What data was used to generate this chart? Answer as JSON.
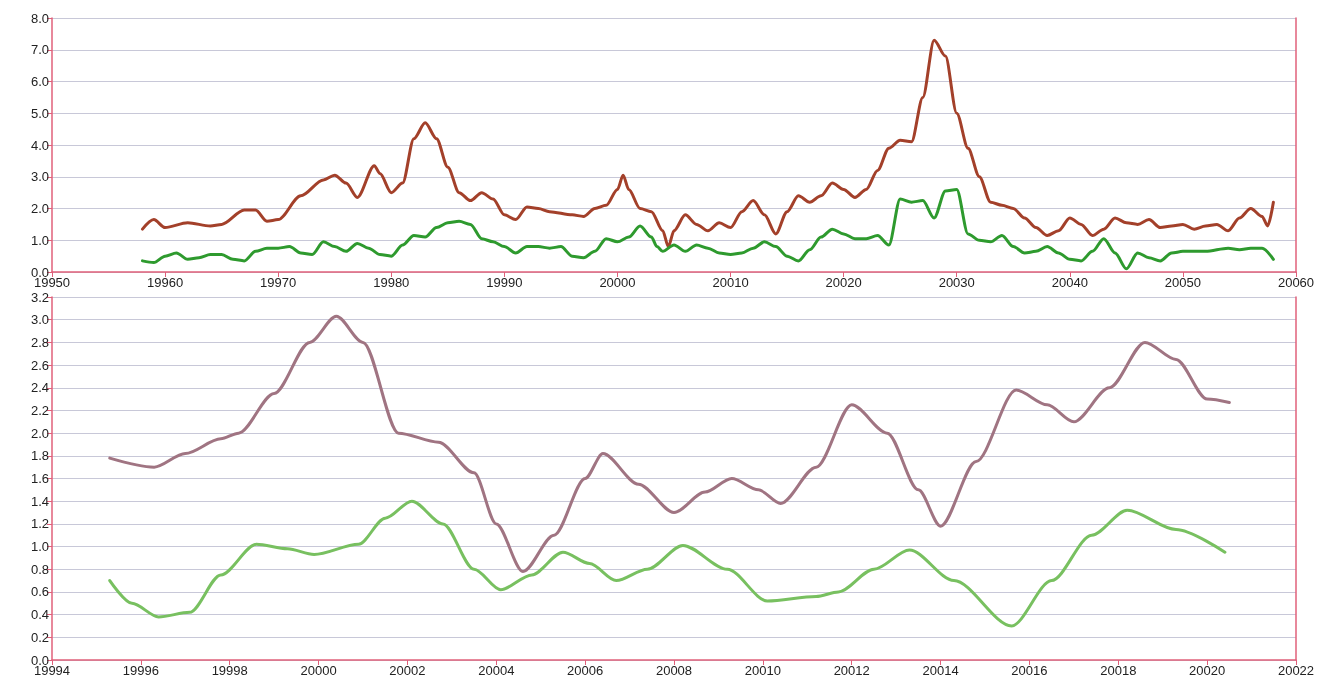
{
  "chart_data": [
    {
      "type": "line",
      "xlim": [
        19950,
        20060
      ],
      "xticks": [
        19950,
        19960,
        19970,
        19980,
        19990,
        20000,
        20010,
        20020,
        20030,
        20040,
        20050,
        20060
      ],
      "ylim": [
        0,
        8
      ],
      "yticks": [
        {
          "value": 0,
          "label": "0.0"
        },
        {
          "value": 1,
          "label": "1.0"
        },
        {
          "value": 2,
          "label": "2.0"
        },
        {
          "value": 3,
          "label": "3.0"
        },
        {
          "value": 4,
          "label": "4.0"
        },
        {
          "value": 5,
          "label": "5.0"
        },
        {
          "value": 6,
          "label": "6.0"
        },
        {
          "value": 7,
          "label": "7.0"
        },
        {
          "value": 8,
          "label": "8.0"
        }
      ],
      "grid": "y",
      "line_style": "solid",
      "series": [
        {
          "color": "#a3402a",
          "x": [
            19958,
            19959,
            19960,
            19962,
            19964,
            19965,
            19967,
            19968,
            19969,
            19970,
            19972,
            19974,
            19975,
            19976,
            19977,
            19978.5,
            19979,
            19980,
            19981,
            19982,
            19983,
            19984,
            19985,
            19986,
            19987,
            19988,
            19989,
            19990,
            19991,
            19992,
            19993,
            19994,
            19996,
            19997,
            19998,
            19999,
            20000,
            20000.5,
            20001,
            20002,
            20003,
            20004,
            20004.5,
            20005,
            20006,
            20007,
            20008,
            20009,
            20010,
            20011,
            20012,
            20013,
            20014,
            20015,
            20016,
            20017,
            20018,
            20019,
            20020,
            20021,
            20022,
            20023,
            20024,
            20025,
            20026,
            20027,
            20028,
            20029,
            20030,
            20031,
            20032,
            20033,
            20034,
            20035,
            20036,
            20037,
            20038,
            20039,
            20040,
            20041,
            20042,
            20043,
            20044,
            20045,
            20046,
            20047,
            20048,
            20049,
            20050,
            20051,
            20052,
            20053,
            20054,
            20055,
            20056,
            20057,
            20057.5,
            20058
          ],
          "values": [
            1.35,
            1.65,
            1.4,
            1.55,
            1.45,
            1.5,
            1.95,
            1.95,
            1.6,
            1.65,
            2.4,
            2.9,
            3.05,
            2.8,
            2.35,
            3.35,
            3.1,
            2.5,
            2.8,
            4.2,
            4.7,
            4.2,
            3.3,
            2.5,
            2.25,
            2.5,
            2.3,
            1.8,
            1.65,
            2.05,
            2.0,
            1.9,
            1.8,
            1.75,
            2.0,
            2.1,
            2.6,
            3.05,
            2.6,
            2.0,
            1.9,
            1.3,
            0.8,
            1.3,
            1.8,
            1.5,
            1.3,
            1.55,
            1.4,
            1.9,
            2.25,
            1.8,
            1.2,
            1.9,
            2.4,
            2.2,
            2.4,
            2.8,
            2.6,
            2.35,
            2.6,
            3.2,
            3.9,
            4.15,
            4.1,
            5.5,
            7.3,
            6.8,
            5.0,
            3.9,
            3.0,
            2.2,
            2.1,
            2.0,
            1.7,
            1.4,
            1.15,
            1.3,
            1.7,
            1.5,
            1.15,
            1.35,
            1.7,
            1.55,
            1.5,
            1.65,
            1.4,
            1.45,
            1.5,
            1.35,
            1.45,
            1.5,
            1.3,
            1.7,
            2.0,
            1.75,
            1.45,
            2.2
          ]
        },
        {
          "color": "#2e9a2e",
          "x": [
            19958,
            19959,
            19960,
            19961,
            19962,
            19963,
            19964,
            19965,
            19966,
            19967,
            19968,
            19969,
            19970,
            19971,
            19972,
            19973,
            19974,
            19975,
            19976,
            19977,
            19978,
            19979,
            19980,
            19981,
            19982,
            19983,
            19984,
            19985,
            19986,
            19987,
            19988,
            19989,
            19990,
            19991,
            19992,
            19993,
            19994,
            19995,
            19996,
            19997,
            19998,
            19999,
            20000,
            20001,
            20002,
            20003,
            20003.5,
            20004,
            20005,
            20006,
            20007,
            20008,
            20009,
            20010,
            20011,
            20012,
            20013,
            20014,
            20015,
            20016,
            20017,
            20018,
            20019,
            20020,
            20021,
            20022,
            20023,
            20024,
            20025,
            20026,
            20027,
            20028,
            20029,
            20030,
            20031,
            20032,
            20033,
            20034,
            20035,
            20036,
            20037,
            20038,
            20039,
            20040,
            20041,
            20042,
            20043,
            20044,
            20045,
            20046,
            20047,
            20048,
            20049,
            20050,
            20052,
            20054,
            20055,
            20056,
            20057,
            20058
          ],
          "values": [
            0.35,
            0.3,
            0.5,
            0.6,
            0.4,
            0.45,
            0.55,
            0.55,
            0.4,
            0.35,
            0.65,
            0.75,
            0.75,
            0.8,
            0.6,
            0.55,
            0.95,
            0.8,
            0.65,
            0.9,
            0.75,
            0.55,
            0.5,
            0.85,
            1.15,
            1.1,
            1.4,
            1.55,
            1.6,
            1.5,
            1.05,
            0.95,
            0.8,
            0.6,
            0.8,
            0.8,
            0.75,
            0.8,
            0.5,
            0.45,
            0.65,
            1.05,
            0.95,
            1.1,
            1.45,
            1.1,
            0.8,
            0.65,
            0.85,
            0.65,
            0.85,
            0.75,
            0.6,
            0.55,
            0.6,
            0.75,
            0.95,
            0.8,
            0.5,
            0.35,
            0.7,
            1.1,
            1.35,
            1.2,
            1.05,
            1.05,
            1.15,
            0.85,
            2.3,
            2.2,
            2.25,
            1.7,
            2.55,
            2.6,
            1.2,
            1.0,
            0.95,
            1.15,
            0.8,
            0.6,
            0.65,
            0.8,
            0.6,
            0.4,
            0.35,
            0.65,
            1.05,
            0.6,
            0.1,
            0.6,
            0.45,
            0.35,
            0.6,
            0.65,
            0.65,
            0.75,
            0.7,
            0.75,
            0.75,
            0.4
          ]
        }
      ]
    },
    {
      "type": "line",
      "xlim": [
        19994,
        20022
      ],
      "xticks": [
        19994,
        19996,
        19998,
        20000,
        20002,
        20004,
        20006,
        20008,
        20010,
        20012,
        20014,
        20016,
        20018,
        20020,
        20022
      ],
      "ylim": [
        0,
        3.2
      ],
      "yticks": [
        {
          "value": 0,
          "label": "0.0"
        },
        {
          "value": 0.2,
          "label": "0.2"
        },
        {
          "value": 0.4,
          "label": "0.4"
        },
        {
          "value": 0.6,
          "label": "0.6"
        },
        {
          "value": 0.8,
          "label": "0.8"
        },
        {
          "value": 1.0,
          "label": "1.0"
        },
        {
          "value": 1.2,
          "label": "1.2"
        },
        {
          "value": 1.4,
          "label": "1.4"
        },
        {
          "value": 1.6,
          "label": "1.6"
        },
        {
          "value": 1.8,
          "label": "1.8"
        },
        {
          "value": 2.0,
          "label": "2.0"
        },
        {
          "value": 2.2,
          "label": "2.2"
        },
        {
          "value": 2.4,
          "label": "2.4"
        },
        {
          "value": 2.6,
          "label": "2.6"
        },
        {
          "value": 2.8,
          "label": "2.8"
        },
        {
          "value": 3.0,
          "label": "3.0"
        },
        {
          "value": 3.2,
          "label": "3.2"
        }
      ],
      "grid": "y",
      "line_style": "solid",
      "series": [
        {
          "color": "#a07482",
          "x": [
            19995.3,
            19996.3,
            19997,
            19997.8,
            19998.2,
            19999,
            19999.8,
            20000.4,
            20001,
            20001.8,
            20002.7,
            20003.5,
            20004,
            20004.6,
            20005.3,
            20006,
            20006.4,
            20007.2,
            20008,
            20008.7,
            20009.3,
            20009.9,
            20010.4,
            20011.2,
            20012,
            20012.8,
            20013.5,
            20014,
            20014.8,
            20015.7,
            20016.4,
            20017,
            20017.8,
            20018.6,
            20019.3,
            20020,
            20020.5
          ],
          "values": [
            1.78,
            1.7,
            1.82,
            1.95,
            2.0,
            2.35,
            2.8,
            3.03,
            2.8,
            2.0,
            1.92,
            1.65,
            1.2,
            0.78,
            1.1,
            1.6,
            1.82,
            1.55,
            1.3,
            1.48,
            1.6,
            1.5,
            1.38,
            1.7,
            2.25,
            2.0,
            1.5,
            1.18,
            1.75,
            2.38,
            2.25,
            2.1,
            2.4,
            2.8,
            2.65,
            2.3,
            2.27
          ]
        },
        {
          "color": "#78c060",
          "x": [
            19995.3,
            19995.8,
            19996.4,
            19997.1,
            19997.8,
            19998.6,
            19999.3,
            19999.9,
            20000.9,
            20001.5,
            20002.1,
            20002.8,
            20003.5,
            20004.1,
            20004.8,
            20005.5,
            20006.1,
            20006.7,
            20007.4,
            20008.2,
            20009.2,
            20010.1,
            20011.2,
            20011.7,
            20012.5,
            20013.3,
            20014.3,
            20015.6,
            20016.5,
            20017.4,
            20018.2,
            20019.3,
            20020.4
          ],
          "values": [
            0.7,
            0.5,
            0.38,
            0.42,
            0.75,
            1.02,
            0.98,
            0.93,
            1.02,
            1.25,
            1.4,
            1.2,
            0.8,
            0.62,
            0.75,
            0.95,
            0.85,
            0.7,
            0.8,
            1.01,
            0.8,
            0.52,
            0.56,
            0.6,
            0.8,
            0.97,
            0.7,
            0.3,
            0.7,
            1.1,
            1.32,
            1.15,
            0.95
          ]
        }
      ]
    }
  ]
}
